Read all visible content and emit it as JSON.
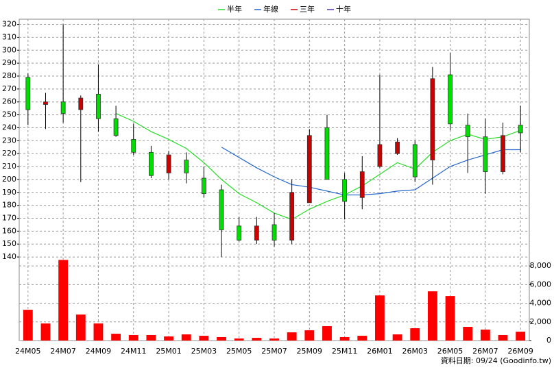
{
  "chart_data": {
    "type": "candlestick",
    "categories": [
      "24M05",
      null,
      "24M07",
      null,
      "24M09",
      null,
      "24M11",
      null,
      "25M01",
      null,
      "25M03",
      null,
      "25M05",
      null,
      "25M07",
      null,
      "25M09",
      null,
      "25M11",
      null,
      "26M01",
      null,
      "26M03",
      null,
      "26M05",
      null,
      "26M07",
      null,
      "26M09"
    ],
    "candles": {
      "up_color": "#00dd00",
      "down_color": "#cc0000",
      "open": [
        254,
        260,
        251,
        263,
        247,
        234,
        221,
        203,
        219,
        205,
        189,
        161,
        153,
        164,
        153,
        190,
        234,
        200,
        183,
        206,
        227,
        229,
        202,
        278,
        243,
        233,
        206,
        234,
        236
      ],
      "high": [
        282,
        267,
        320,
        265,
        289,
        257,
        243,
        226,
        222,
        221,
        210,
        196,
        171,
        171,
        174,
        200,
        239,
        250,
        205,
        218,
        281,
        232,
        230,
        287,
        298,
        251,
        247,
        244,
        257
      ],
      "low": [
        242,
        239,
        244,
        198,
        237,
        233,
        219,
        201,
        200,
        197,
        186,
        140,
        152,
        150,
        148,
        150,
        182,
        200,
        169,
        177,
        209,
        219,
        198,
        196,
        238,
        205,
        189,
        204,
        221
      ],
      "close": [
        279,
        258,
        260,
        254,
        266,
        247,
        231,
        221,
        205,
        215,
        201,
        192,
        164,
        153,
        165,
        153,
        182,
        240,
        200,
        186,
        210,
        220,
        227,
        215,
        281,
        242,
        233,
        206,
        242
      ]
    },
    "series": [
      {
        "name": "半年",
        "color": "#22dd22",
        "values": [
          null,
          null,
          null,
          null,
          null,
          251,
          245,
          237,
          231,
          224,
          213,
          200,
          189,
          182,
          174,
          169,
          177,
          183,
          188,
          195,
          204,
          213,
          208,
          221,
          230,
          235,
          231,
          233,
          238
        ]
      },
      {
        "name": "年線",
        "color": "#2266cc",
        "values": [
          null,
          null,
          null,
          null,
          null,
          null,
          null,
          null,
          null,
          null,
          null,
          225,
          217,
          209,
          202,
          196,
          194,
          191,
          188,
          188,
          189,
          191,
          192,
          201,
          210,
          215,
          219,
          223,
          223
        ]
      },
      {
        "name": "三年",
        "color": "#cc0000",
        "values": [
          null,
          null,
          null,
          null,
          null,
          null,
          null,
          null,
          null,
          null,
          null,
          null,
          null,
          null,
          null,
          null,
          null,
          null,
          null,
          null,
          null,
          null,
          null,
          null,
          null,
          null,
          null,
          null,
          null
        ]
      },
      {
        "name": "十年",
        "color": "#5533bb",
        "values": [
          null,
          null,
          null,
          null,
          null,
          null,
          null,
          null,
          null,
          null,
          null,
          null,
          null,
          null,
          null,
          null,
          null,
          null,
          null,
          null,
          null,
          null,
          null,
          null,
          null,
          null,
          null,
          null,
          null
        ]
      }
    ],
    "volume": {
      "axis": "y2",
      "color": "#ff0000",
      "values": [
        3300,
        1830,
        8650,
        2790,
        1830,
        730,
        590,
        590,
        440,
        660,
        510,
        370,
        220,
        290,
        220,
        880,
        1100,
        1540,
        370,
        510,
        4840,
        660,
        1320,
        5280,
        4770,
        1470,
        1170,
        590,
        950
      ]
    },
    "ylim": [
      135,
      324
    ],
    "yticks": [
      140,
      150,
      160,
      170,
      180,
      190,
      200,
      210,
      220,
      230,
      240,
      250,
      260,
      270,
      280,
      290,
      300,
      310,
      320
    ],
    "y2lim": [
      0,
      8600
    ],
    "y2ticks": [
      0,
      {
        "value": 2000,
        "label": "2,000"
      },
      {
        "value": 4000,
        "label": "4,000"
      },
      {
        "value": 6000,
        "label": "6,000"
      },
      {
        "value": 8000,
        "label": "8,000"
      }
    ],
    "grid": true,
    "source": "資料日期: 09/24  (Goodinfo.tw)"
  }
}
